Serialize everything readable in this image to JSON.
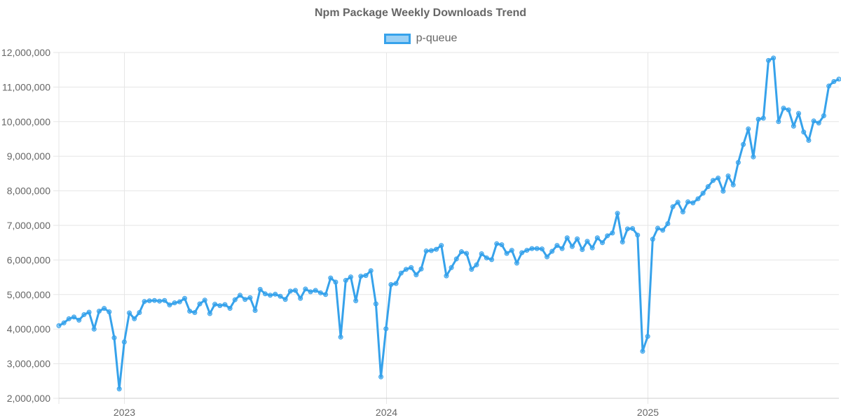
{
  "chart_data": {
    "type": "line",
    "title": "Npm Package Weekly Downloads Trend",
    "xlabel": "",
    "ylabel": "",
    "ylim": [
      2000000,
      12000000
    ],
    "y_ticks": [
      "2,000,000",
      "3,000,000",
      "4,000,000",
      "5,000,000",
      "6,000,000",
      "7,000,000",
      "8,000,000",
      "9,000,000",
      "10,000,000",
      "11,000,000",
      "12,000,000"
    ],
    "y_tick_values": [
      2000000,
      3000000,
      4000000,
      5000000,
      6000000,
      7000000,
      8000000,
      9000000,
      10000000,
      11000000,
      12000000
    ],
    "x_ticks": [
      "2023",
      "2024",
      "2025"
    ],
    "grid": true,
    "legend_position": "top",
    "series": [
      {
        "name": "p-queue",
        "color": "#36A2EB",
        "values": [
          4100000,
          4180000,
          4300000,
          4350000,
          4260000,
          4420000,
          4490000,
          4000000,
          4520000,
          4600000,
          4500000,
          3750000,
          2270000,
          3630000,
          4470000,
          4300000,
          4480000,
          4800000,
          4820000,
          4830000,
          4810000,
          4830000,
          4700000,
          4760000,
          4790000,
          4890000,
          4520000,
          4480000,
          4730000,
          4840000,
          4450000,
          4720000,
          4680000,
          4710000,
          4600000,
          4850000,
          4980000,
          4860000,
          4910000,
          4540000,
          5150000,
          5020000,
          4980000,
          5010000,
          4950000,
          4860000,
          5100000,
          5120000,
          4890000,
          5160000,
          5080000,
          5120000,
          5050000,
          5000000,
          5480000,
          5360000,
          3770000,
          5410000,
          5510000,
          4820000,
          5530000,
          5550000,
          5690000,
          4730000,
          2620000,
          4010000,
          5290000,
          5320000,
          5620000,
          5730000,
          5780000,
          5570000,
          5740000,
          6260000,
          6270000,
          6310000,
          6420000,
          5540000,
          5780000,
          6030000,
          6240000,
          6190000,
          5730000,
          5860000,
          6180000,
          6060000,
          6010000,
          6470000,
          6440000,
          6190000,
          6280000,
          5910000,
          6210000,
          6280000,
          6330000,
          6330000,
          6320000,
          6090000,
          6250000,
          6420000,
          6330000,
          6640000,
          6390000,
          6610000,
          6300000,
          6540000,
          6350000,
          6640000,
          6500000,
          6700000,
          6780000,
          7350000,
          6520000,
          6900000,
          6910000,
          6720000,
          3360000,
          3790000,
          6600000,
          6920000,
          6860000,
          7050000,
          7540000,
          7670000,
          7390000,
          7680000,
          7650000,
          7770000,
          7930000,
          8120000,
          8300000,
          8370000,
          7990000,
          8430000,
          8170000,
          8820000,
          9340000,
          9790000,
          8980000,
          10070000,
          10100000,
          11770000,
          11840000,
          10000000,
          10390000,
          10340000,
          9870000,
          10240000,
          9700000,
          9460000,
          10020000,
          9960000,
          10170000,
          11030000,
          11160000,
          11230000
        ]
      }
    ]
  }
}
